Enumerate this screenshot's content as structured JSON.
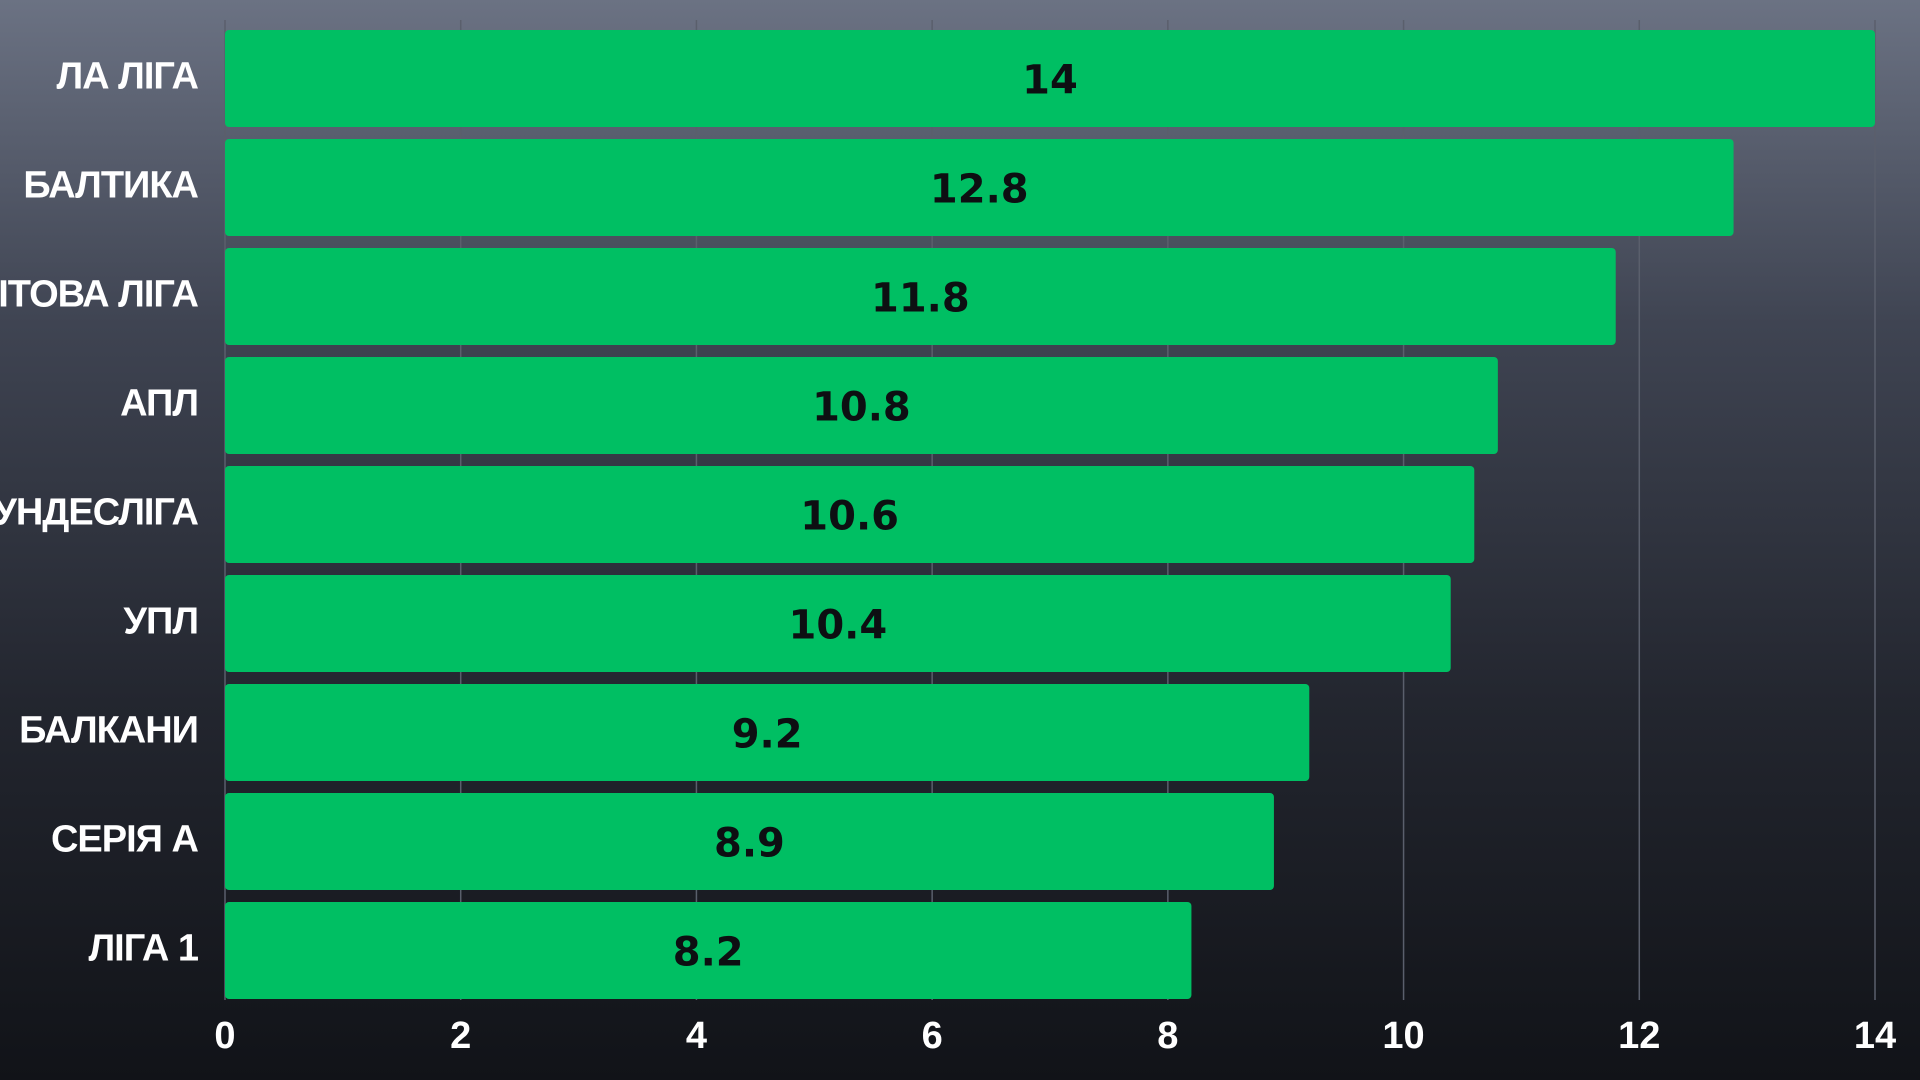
{
  "chart_data": {
    "type": "bar",
    "orientation": "horizontal",
    "categories": [
      "ЛА ЛІГА",
      "БАЛТИКА",
      "СВІТОВА ЛІГА",
      "АПЛ",
      "БУНДЕСЛІГА",
      "УПЛ",
      "БАЛКАНИ",
      "СЕРІЯ А",
      "ЛІГА 1"
    ],
    "values": [
      14,
      12.8,
      11.8,
      10.8,
      10.6,
      10.4,
      9.2,
      8.9,
      8.2
    ],
    "value_labels": [
      "14",
      "12.8",
      "11.8",
      "10.8",
      "10.6",
      "10.4",
      "9.2",
      "8.9",
      "8.2"
    ],
    "x_ticks": [
      "0",
      "2",
      "4",
      "6",
      "8",
      "10",
      "12",
      "14"
    ],
    "xlim": [
      0,
      14
    ],
    "grid": true,
    "title": "",
    "xlabel": "",
    "ylabel": "",
    "colors": {
      "bar": "#00bf63",
      "grid": "#5a5f6c",
      "label_text": "#ffffff",
      "value_text": "#0d0f12"
    }
  }
}
